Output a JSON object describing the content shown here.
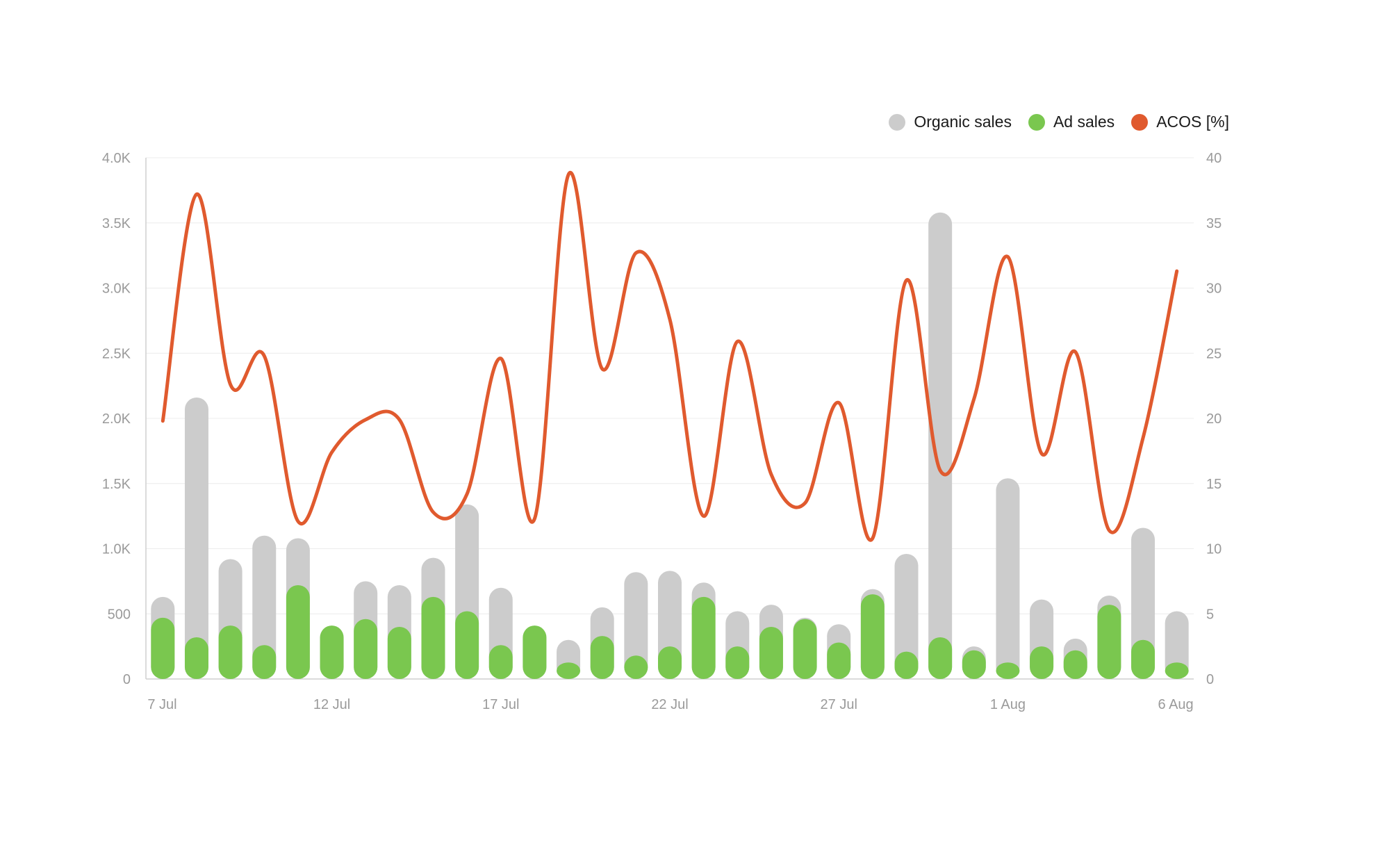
{
  "chart_data": {
    "type": "bar",
    "legend_placement": "top-right",
    "grid": true,
    "x_tick_labels": [
      "7 Jul",
      "12 Jul",
      "17 Jul",
      "22 Jul",
      "27 Jul",
      "1 Aug",
      "6 Aug"
    ],
    "categories": [
      "7 Jul",
      "8 Jul",
      "9 Jul",
      "10 Jul",
      "11 Jul",
      "12 Jul",
      "13 Jul",
      "14 Jul",
      "15 Jul",
      "16 Jul",
      "17 Jul",
      "18 Jul",
      "19 Jul",
      "20 Jul",
      "21 Jul",
      "22 Jul",
      "23 Jul",
      "24 Jul",
      "25 Jul",
      "26 Jul",
      "27 Jul",
      "28 Jul",
      "29 Jul",
      "30 Jul",
      "31 Jul",
      "1 Aug",
      "2 Aug",
      "3 Aug",
      "4 Aug",
      "5 Aug",
      "6 Aug"
    ],
    "y_left": {
      "ylim": [
        0,
        4000
      ],
      "ticks": [
        "0",
        "500",
        "1.0K",
        "1.5K",
        "2.0K",
        "2.5K",
        "3.0K",
        "3.5K",
        "4.0K"
      ]
    },
    "y_right": {
      "ylim": [
        0,
        40
      ],
      "ticks": [
        "0",
        "5",
        "10",
        "15",
        "20",
        "25",
        "30",
        "35",
        "40"
      ]
    },
    "series": [
      {
        "name": "Organic sales",
        "axis": "left",
        "color": "#cccccc",
        "values": [
          630,
          2160,
          920,
          1100,
          1080,
          400,
          750,
          720,
          930,
          1340,
          700,
          400,
          300,
          550,
          820,
          830,
          740,
          520,
          570,
          470,
          420,
          690,
          960,
          3580,
          250,
          1540,
          610,
          310,
          640,
          1160,
          520
        ]
      },
      {
        "name": "Ad sales",
        "axis": "left",
        "color": "#7ac74f",
        "values": [
          470,
          320,
          410,
          260,
          720,
          410,
          460,
          400,
          630,
          520,
          260,
          410,
          120,
          330,
          180,
          250,
          630,
          250,
          400,
          460,
          280,
          650,
          210,
          320,
          220,
          100,
          250,
          220,
          570,
          300,
          120
        ]
      },
      {
        "name": "ACOS [%]",
        "axis": "right",
        "type": "line",
        "color": "#e05a2e",
        "values": [
          19.8,
          37.2,
          22.6,
          24.8,
          12.1,
          17.4,
          19.9,
          19.9,
          12.8,
          14.2,
          24.6,
          12.3,
          38.7,
          23.8,
          32.7,
          27.6,
          12.5,
          25.9,
          15.7,
          13.5,
          21.2,
          10.8,
          30.6,
          16.0,
          21.5,
          32.4,
          17.3,
          25.1,
          11.4,
          18.5,
          31.3
        ]
      }
    ]
  }
}
